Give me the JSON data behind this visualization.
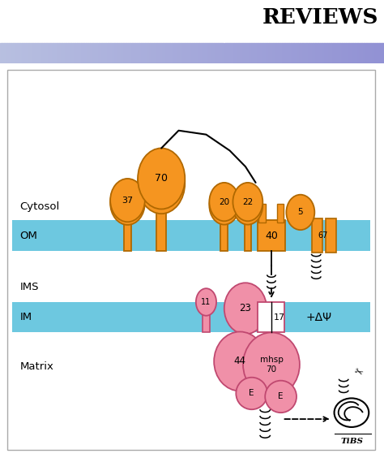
{
  "bg_color": "#ffffff",
  "reviews_text": "REVIEWS",
  "om_color": "#6dc8e0",
  "im_color": "#6dc8e0",
  "orange_fill": "#f59520",
  "orange_edge": "#b06800",
  "pink_fill": "#f090a8",
  "pink_edge": "#c04870",
  "white_fill": "#ffffff",
  "label_cytosol": "Cytosol",
  "label_om": "OM",
  "label_ims": "IMS",
  "label_im": "IM",
  "label_matrix": "Matrix",
  "label_delta_psi": "+ΔΨ",
  "header_line_blue": "#6070a8"
}
